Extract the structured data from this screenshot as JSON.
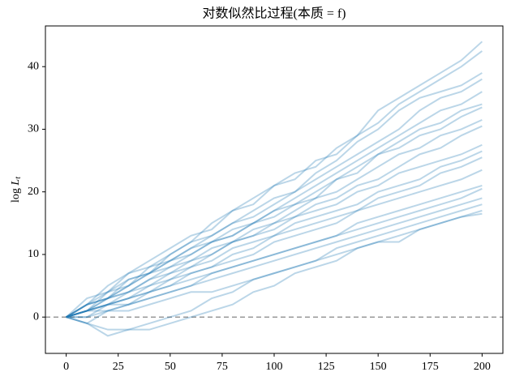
{
  "chart_data": {
    "type": "line",
    "title": "对数似然比过程(本质 = f)",
    "y_label": "log",
    "y_label_var": "L",
    "y_label_sub": "t",
    "x": [
      0,
      10,
      20,
      30,
      40,
      50,
      60,
      70,
      80,
      90,
      100,
      110,
      120,
      130,
      140,
      150,
      160,
      170,
      180,
      190,
      200
    ],
    "alpha": 0.3,
    "series": [
      {
        "color": "#1f77b4",
        "values": [
          0,
          2,
          5,
          7,
          9,
          11,
          13,
          14,
          17,
          19,
          21,
          23,
          24,
          27,
          29,
          33,
          35,
          37,
          39,
          41,
          44
        ]
      },
      {
        "color": "#1f77b4",
        "values": [
          0,
          3,
          4,
          7,
          8,
          10,
          12,
          15,
          17,
          18,
          21,
          22,
          25,
          26,
          29,
          31,
          34,
          36,
          38,
          40,
          42.5
        ]
      },
      {
        "color": "#1f77b4",
        "values": [
          0,
          2,
          3,
          5,
          8,
          9,
          11,
          13,
          15,
          17,
          19,
          20,
          23,
          25,
          28,
          30,
          33,
          35,
          36,
          37,
          39
        ]
      },
      {
        "color": "#1f77b4",
        "values": [
          0,
          1,
          4,
          6,
          7,
          10,
          12,
          13,
          15,
          16,
          18,
          20,
          22,
          24,
          26,
          28,
          30,
          33,
          35,
          36,
          38
        ]
      },
      {
        "color": "#1f77b4",
        "values": [
          0,
          2,
          4,
          5,
          7,
          9,
          10,
          12,
          14,
          15,
          17,
          19,
          21,
          23,
          25,
          27,
          29,
          31,
          33,
          34,
          36
        ]
      },
      {
        "color": "#1f77b4",
        "values": [
          0,
          1,
          3,
          5,
          7,
          8,
          10,
          12,
          13,
          15,
          17,
          18,
          20,
          22,
          24,
          26,
          28,
          30,
          31,
          33,
          34
        ]
      },
      {
        "color": "#1f77b4",
        "values": [
          0,
          2,
          3,
          6,
          7,
          9,
          11,
          12,
          13,
          15,
          16,
          18,
          19,
          22,
          23,
          26,
          27,
          29,
          30,
          32,
          33.5
        ]
      },
      {
        "color": "#1f77b4",
        "values": [
          0,
          1,
          2,
          4,
          5,
          7,
          8,
          10,
          12,
          14,
          15,
          17,
          19,
          20,
          22,
          24,
          26,
          27,
          29,
          30,
          31.5
        ]
      },
      {
        "color": "#1f77b4",
        "values": [
          0,
          1,
          3,
          4,
          6,
          8,
          9,
          11,
          12,
          13,
          15,
          16,
          18,
          19,
          21,
          22,
          24,
          26,
          27,
          29,
          30.5
        ]
      },
      {
        "color": "#1f77b4",
        "values": [
          0,
          2,
          3,
          4,
          6,
          7,
          9,
          10,
          12,
          13,
          14,
          16,
          17,
          18,
          20,
          21,
          23,
          24,
          25,
          26,
          27.5
        ]
      },
      {
        "color": "#1f77b4",
        "values": [
          0,
          1,
          2,
          3,
          5,
          6,
          8,
          9,
          11,
          12,
          13,
          15,
          16,
          17,
          18,
          20,
          21,
          22,
          24,
          25,
          26.5
        ]
      },
      {
        "color": "#1f77b4",
        "values": [
          0,
          0,
          2,
          3,
          4,
          6,
          7,
          8,
          10,
          11,
          13,
          14,
          15,
          16,
          17,
          19,
          20,
          21,
          23,
          24,
          25.5
        ]
      },
      {
        "color": "#1f77b4",
        "values": [
          0,
          1,
          2,
          3,
          4,
          5,
          7,
          8,
          9,
          10,
          12,
          13,
          14,
          15,
          17,
          18,
          19,
          20,
          21,
          22,
          23.5
        ]
      },
      {
        "color": "#1f77b4",
        "values": [
          0,
          1,
          2,
          2,
          4,
          5,
          6,
          7,
          8,
          9,
          10,
          11,
          12,
          13,
          15,
          16,
          17,
          18,
          19,
          20,
          21
        ]
      },
      {
        "color": "#1f77b4",
        "values": [
          0,
          -1,
          1,
          2,
          3,
          4,
          5,
          7,
          8,
          9,
          10,
          11,
          12,
          13,
          14,
          15,
          16,
          17,
          18,
          19,
          20.5
        ]
      },
      {
        "color": "#1f77b4",
        "values": [
          0,
          1,
          1,
          2,
          3,
          4,
          5,
          6,
          7,
          8,
          9,
          10,
          11,
          12,
          13,
          14,
          15,
          16,
          17,
          18,
          19
        ]
      },
      {
        "color": "#1f77b4",
        "values": [
          0,
          -1,
          -2,
          -2,
          -1,
          0,
          1,
          3,
          4,
          6,
          7,
          8,
          9,
          11,
          12,
          13,
          14,
          15,
          16,
          17,
          18
        ]
      },
      {
        "color": "#1f77b4",
        "values": [
          0,
          -1,
          -3,
          -2,
          -2,
          -1,
          0,
          1,
          2,
          4,
          5,
          7,
          8,
          9,
          11,
          12,
          13,
          14,
          15,
          16,
          17
        ]
      },
      {
        "color": "#1f77b4",
        "values": [
          0,
          0,
          1,
          1,
          2,
          3,
          4,
          4,
          5,
          6,
          7,
          8,
          9,
          10,
          11,
          12,
          12,
          14,
          15,
          16,
          16.5
        ]
      }
    ],
    "hline": {
      "y": 0,
      "color": "#999999"
    },
    "xlim": [
      -10,
      210
    ],
    "ylim": [
      -5.8,
      46.5
    ],
    "xticks": [
      0,
      25,
      50,
      75,
      100,
      125,
      150,
      175,
      200
    ],
    "yticks": [
      0,
      10,
      20,
      30,
      40
    ]
  }
}
